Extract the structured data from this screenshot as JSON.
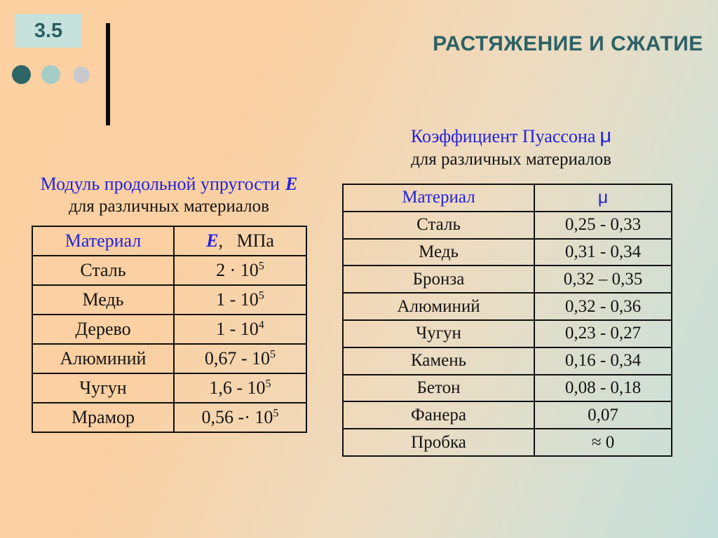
{
  "slide": {
    "number": "3.5",
    "title": "РАСТЯЖЕНИЕ И СЖАТИЕ"
  },
  "colors": {
    "accent_teal": "#2c6166",
    "heading_blue": "#2222dd",
    "bg_top_left": "#fdd1a2",
    "bg_bottom_right": "#c5dfda",
    "number_box_bg": "#c7e2dd"
  },
  "elasticity_block": {
    "heading_line1": "Модуль продольной упругости",
    "heading_symbol": "E",
    "heading_line2": "для различных материалов",
    "col1_header": "Материал",
    "col2_header_symbol": "E",
    "col2_header_rest": ",   МПа",
    "rows": [
      {
        "material": "Сталь",
        "value": "2 · 10",
        "sup": "5"
      },
      {
        "material": "Медь",
        "value": "1 - 10",
        "sup": "5"
      },
      {
        "material": "Дерево",
        "value": "1 - 10",
        "sup": "4"
      },
      {
        "material": "Алюминий",
        "value": "0,67 - 10",
        "sup": "5"
      },
      {
        "material": "Чугун",
        "value": "1,6 - 10",
        "sup": "5"
      },
      {
        "material": "Мрамор",
        "value": "0,56 -· 10",
        "sup": "5"
      }
    ]
  },
  "poisson_block": {
    "heading_line1": "Коэффициент Пуассона",
    "heading_symbol": "μ",
    "heading_line2": "для различных материалов",
    "col1_header": "Материал",
    "col2_header": "μ",
    "rows": [
      {
        "material": "Сталь",
        "value": "0,25 - 0,33"
      },
      {
        "material": "Медь",
        "value": "0,31 - 0,34"
      },
      {
        "material": "Бронза",
        "value": "0,32 – 0,35"
      },
      {
        "material": "Алюминий",
        "value": "0,32 - 0,36"
      },
      {
        "material": "Чугун",
        "value": "0,23 - 0,27"
      },
      {
        "material": "Камень",
        "value": "0,16 - 0,34"
      },
      {
        "material": "Бетон",
        "value": "0,08 - 0,18"
      },
      {
        "material": "Фанера",
        "value": "0,07"
      },
      {
        "material": "Пробка",
        "value": "≈ 0"
      }
    ]
  }
}
